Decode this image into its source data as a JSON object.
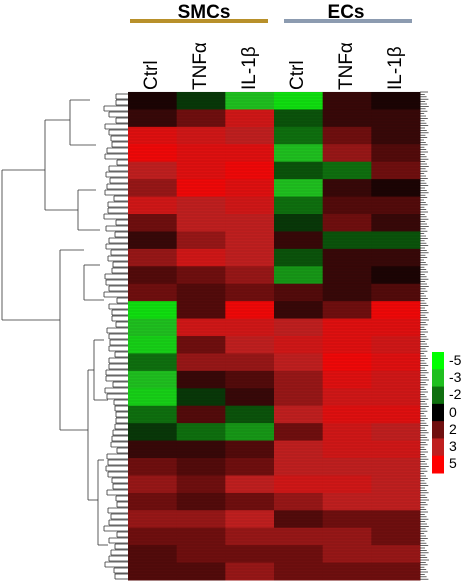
{
  "groups": [
    {
      "label": "SMCs",
      "color": "#b8902a"
    },
    {
      "label": "ECs",
      "color": "#8c9bb0"
    }
  ],
  "columns": [
    "Ctrl",
    "TNFα",
    "IL-1β",
    "Ctrl",
    "TNFα",
    "IL-1β"
  ],
  "legend": {
    "labels": [
      "-5",
      "-3",
      "-2",
      "0",
      "2",
      "3",
      "5"
    ],
    "colors": [
      "#00ff00",
      "#1fbf1f",
      "#0f6f0f",
      "#000000",
      "#6f0f0f",
      "#bf1f1f",
      "#ff0000"
    ]
  },
  "chart_data": {
    "type": "heatmap",
    "title": "",
    "groups": [
      "SMCs",
      "ECs"
    ],
    "columns": [
      "Ctrl",
      "TNFα",
      "IL-1β",
      "Ctrl",
      "TNFα",
      "IL-1β"
    ],
    "color_scale": {
      "values": [
        -5,
        -3,
        -2,
        0,
        2,
        3,
        5
      ],
      "colors": [
        "#00ff00",
        "#1fbf1f",
        "#0f6f0f",
        "#000000",
        "#6f0f0f",
        "#bf1f1f",
        "#ff0000"
      ]
    },
    "dendrogram": "hierarchical clustering of rows (left side)",
    "values": [
      [
        0.5,
        -1.0,
        -3.0,
        -4.0,
        1.0,
        0.5
      ],
      [
        1.0,
        2.0,
        3.5,
        -1.5,
        1.0,
        1.0
      ],
      [
        4.0,
        3.5,
        3.0,
        -2.0,
        2.0,
        1.0
      ],
      [
        4.5,
        4.0,
        4.0,
        -3.0,
        2.5,
        1.5
      ],
      [
        3.0,
        4.0,
        4.5,
        -1.5,
        -2.0,
        2.0
      ],
      [
        2.5,
        4.5,
        4.0,
        -3.0,
        1.0,
        0.5
      ],
      [
        3.5,
        3.0,
        3.5,
        -2.0,
        1.5,
        1.5
      ],
      [
        2.0,
        3.0,
        3.0,
        -1.0,
        2.0,
        1.0
      ],
      [
        1.0,
        2.5,
        3.0,
        1.0,
        -1.5,
        -1.5
      ],
      [
        2.5,
        3.5,
        3.0,
        -1.5,
        1.0,
        1.0
      ],
      [
        1.5,
        2.0,
        2.5,
        -2.5,
        1.0,
        0.5
      ],
      [
        2.0,
        1.5,
        2.0,
        1.5,
        1.0,
        1.5
      ],
      [
        -4.0,
        1.5,
        4.5,
        1.0,
        2.0,
        4.5
      ],
      [
        -3.0,
        3.5,
        3.5,
        3.0,
        4.0,
        4.0
      ],
      [
        -3.5,
        2.0,
        3.0,
        3.5,
        4.0,
        3.5
      ],
      [
        -2.0,
        2.5,
        2.5,
        3.0,
        4.5,
        4.0
      ],
      [
        -3.0,
        1.0,
        1.5,
        2.5,
        4.0,
        3.5
      ],
      [
        -3.5,
        -1.0,
        1.0,
        2.5,
        3.5,
        3.5
      ],
      [
        -2.0,
        1.5,
        -1.5,
        3.0,
        4.0,
        4.0
      ],
      [
        -1.0,
        -2.0,
        -2.5,
        2.0,
        3.5,
        3.0
      ],
      [
        1.0,
        1.0,
        1.5,
        3.0,
        3.5,
        3.5
      ],
      [
        2.0,
        1.5,
        2.0,
        3.0,
        3.0,
        3.0
      ],
      [
        2.5,
        2.0,
        3.0,
        3.5,
        3.5,
        3.0
      ],
      [
        2.0,
        1.5,
        2.0,
        2.5,
        3.0,
        3.0
      ],
      [
        2.5,
        2.5,
        3.0,
        1.5,
        2.0,
        2.0
      ],
      [
        2.0,
        2.0,
        2.5,
        2.5,
        2.5,
        2.0
      ],
      [
        1.5,
        2.0,
        2.0,
        2.0,
        2.5,
        2.5
      ],
      [
        1.5,
        1.5,
        2.5,
        2.0,
        2.0,
        2.0
      ]
    ]
  }
}
